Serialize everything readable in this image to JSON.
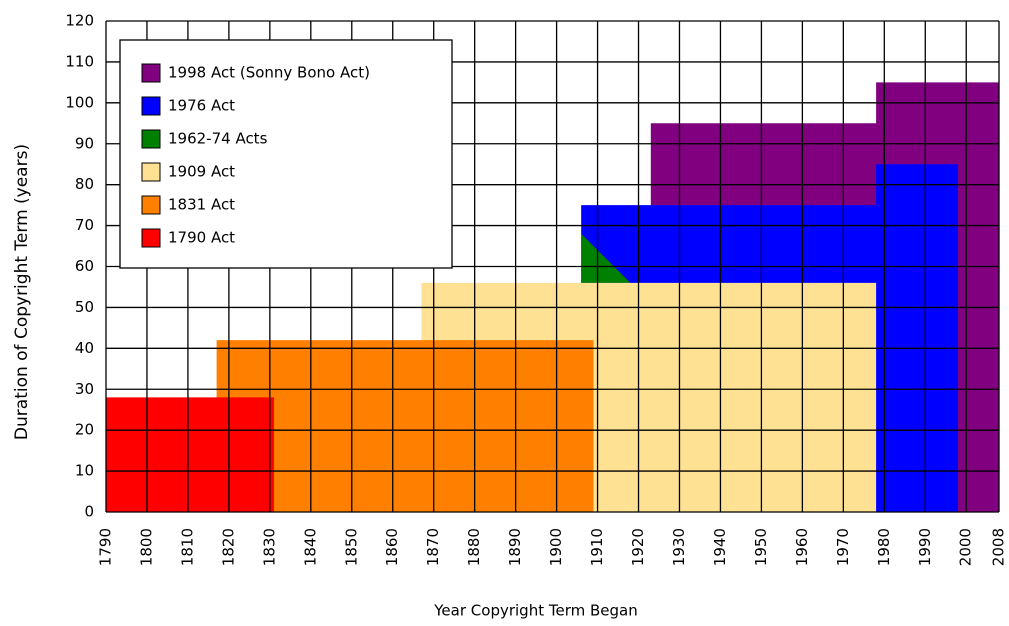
{
  "chart_data": {
    "type": "area",
    "xlabel": "Year Copyright Term Began",
    "ylabel": "Duration of Copyright Term (years)",
    "xlim": [
      1790,
      2008
    ],
    "xticks": [
      1790,
      1800,
      1810,
      1820,
      1830,
      1840,
      1850,
      1860,
      1870,
      1880,
      1890,
      1900,
      1910,
      1920,
      1930,
      1940,
      1950,
      1960,
      1970,
      1980,
      1990,
      2000,
      2008
    ],
    "ylim": [
      0,
      120
    ],
    "yticks": [
      0,
      10,
      20,
      30,
      40,
      50,
      60,
      70,
      80,
      90,
      100,
      110,
      120
    ],
    "grid": true,
    "legend": "upper left",
    "series": [
      {
        "name": "1998 Act (Sonny Bono Act)",
        "color": "#800080",
        "x": [
          1923,
          1923,
          1978,
          1978,
          2008,
          2008
        ],
        "values": [
          0,
          95,
          95,
          105,
          105,
          0
        ]
      },
      {
        "name": "1976 Act",
        "color": "#0000ff",
        "x": [
          1906,
          1906,
          1978,
          1978,
          1998,
          1998
        ],
        "values": [
          0,
          75,
          75,
          85,
          85,
          0
        ]
      },
      {
        "name": "1962-74 Acts",
        "color": "#008000",
        "x": [
          1906,
          1906,
          1918
        ],
        "values": [
          56,
          68,
          56
        ]
      },
      {
        "name": "1909 Act",
        "color": "#ffe194",
        "x": [
          1867,
          1867,
          1978,
          1978
        ],
        "values": [
          0,
          56,
          56,
          0
        ]
      },
      {
        "name": "1831 Act",
        "color": "#ff8000",
        "x": [
          1817,
          1817,
          1909,
          1909
        ],
        "values": [
          0,
          42,
          42,
          0
        ]
      },
      {
        "name": "1790 Act",
        "color": "#ff0000",
        "x": [
          1790,
          1790,
          1831,
          1831
        ],
        "values": [
          0,
          28,
          28,
          0
        ]
      }
    ]
  }
}
